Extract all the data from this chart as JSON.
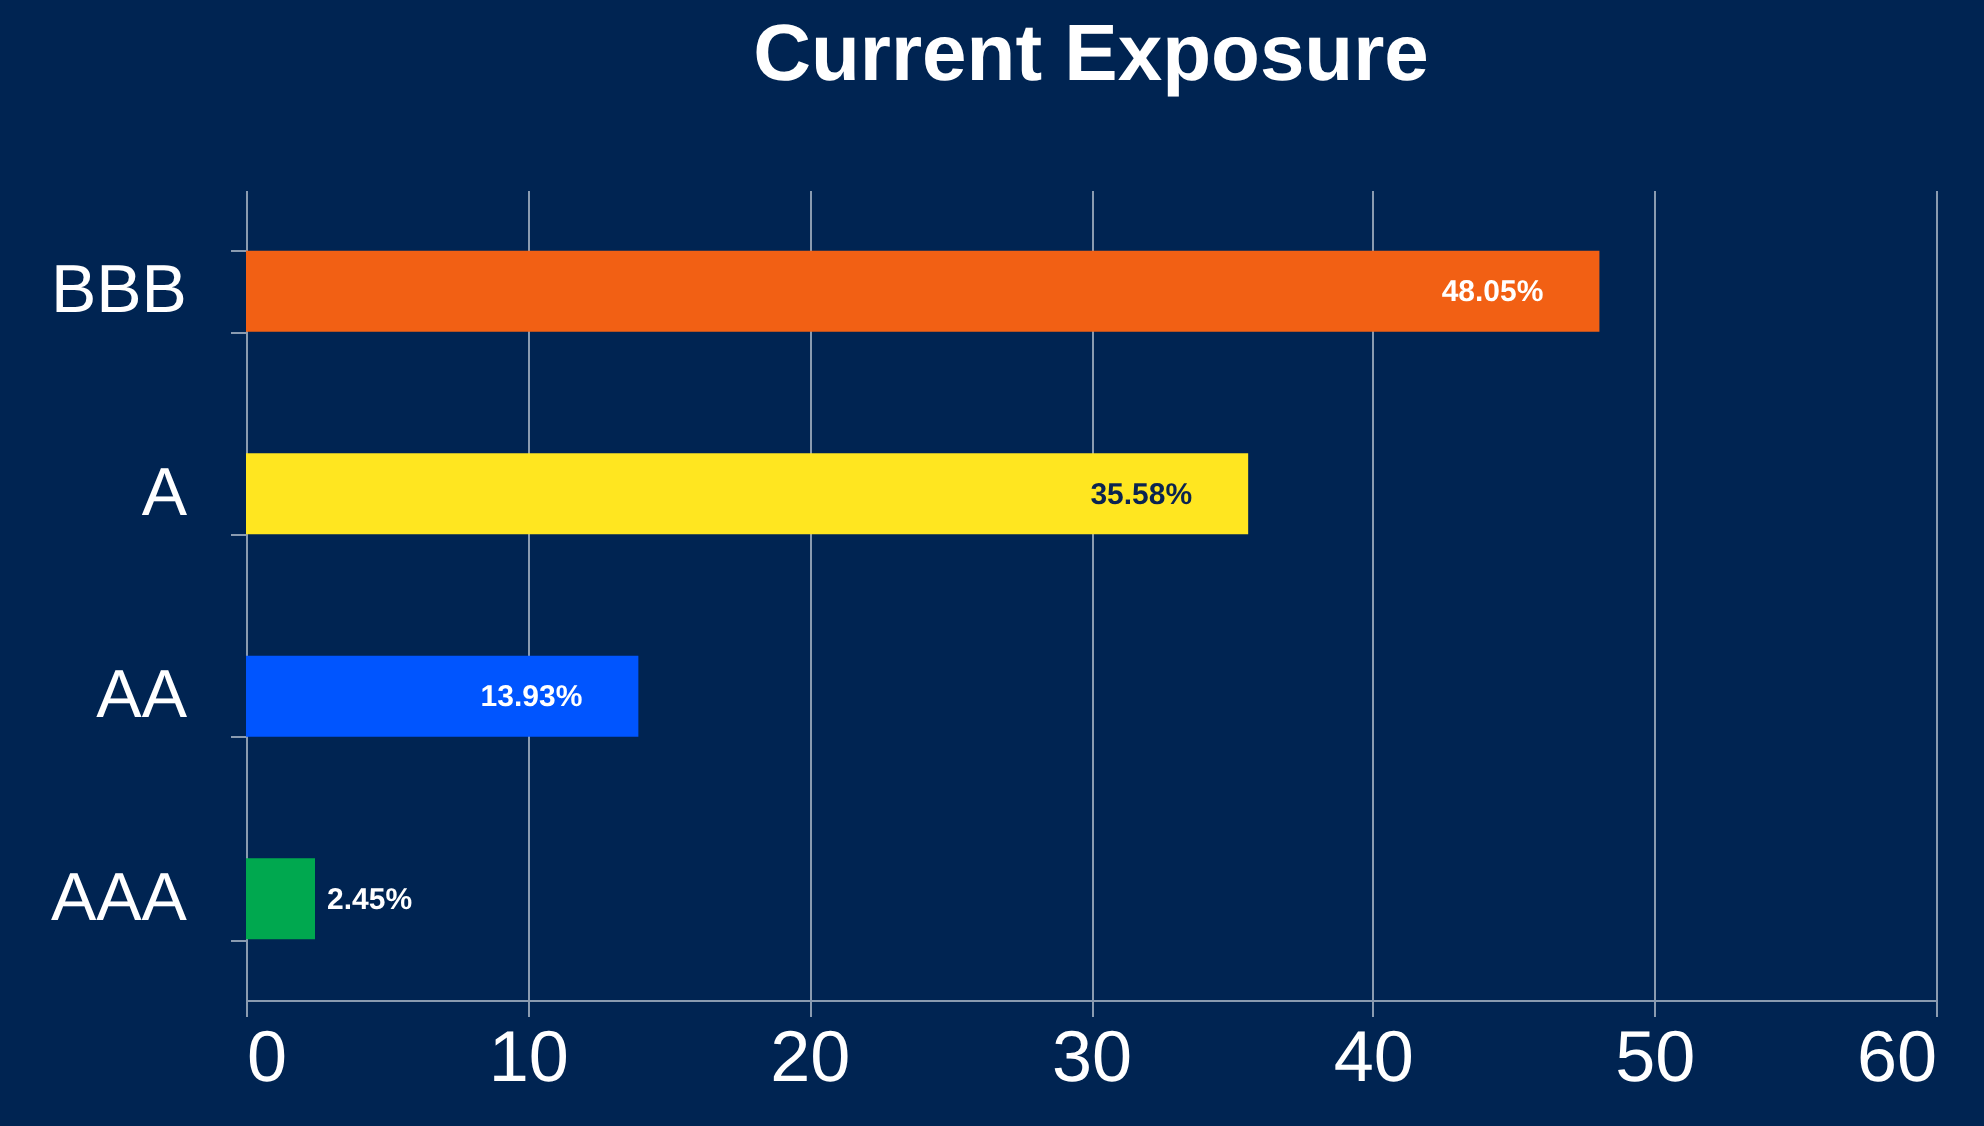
{
  "chart_data": {
    "type": "bar",
    "orientation": "horizontal",
    "title": "Current Exposure",
    "categories": [
      "BBB",
      "A",
      "AA",
      "AAA"
    ],
    "values": [
      48.05,
      35.58,
      13.93,
      2.45
    ],
    "colors": [
      "#f26014",
      "#ffe620",
      "#0055ff",
      "#00a84f"
    ],
    "value_labels": [
      "48.05%",
      "35.58%",
      "13.93%",
      "2.45%"
    ],
    "xlim": [
      0,
      60
    ],
    "xticks": [
      0,
      10,
      20,
      30,
      40,
      50,
      60
    ],
    "grid": "x",
    "legend": false
  }
}
